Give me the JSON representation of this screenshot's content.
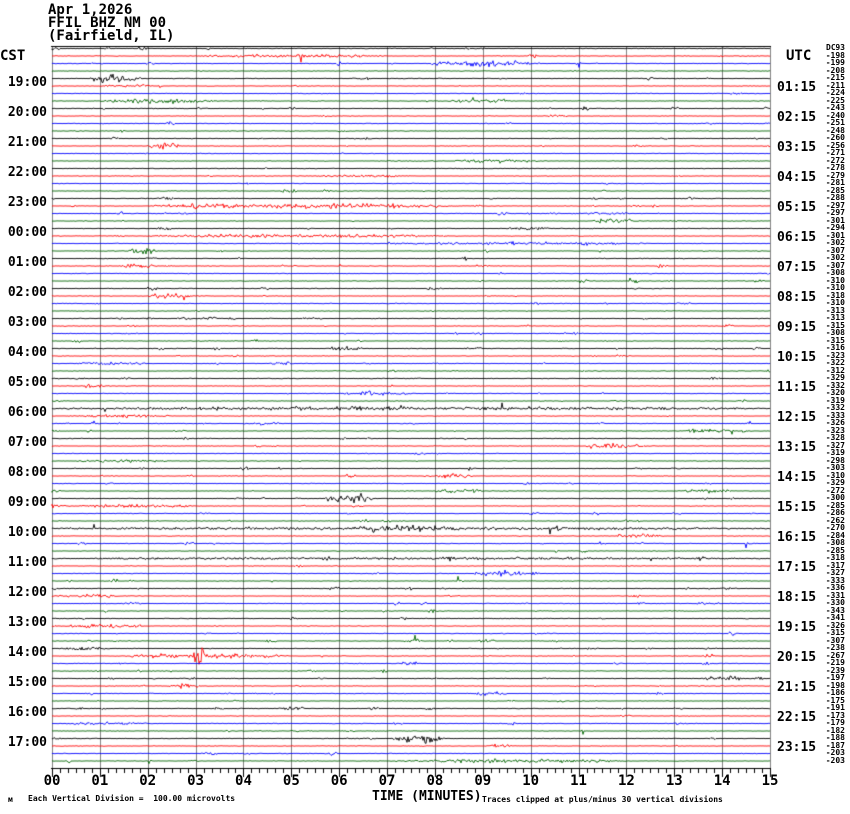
{
  "header": {
    "date": "Apr 1,2026",
    "station_id": "FFIL BHZ NM 00",
    "location": "(Fairfield, IL)"
  },
  "axis_headers": {
    "left": "CST",
    "right": "UTC",
    "dc": "DC"
  },
  "footer": {
    "corner_mark": "м",
    "scale_note": "Each Vertical Division =  100.00 microvolts",
    "time_axis_label": "TIME (MINUTES)",
    "clip_note": "Traces clipped at plus/minus 30 vertical divisions"
  },
  "chart_data": {
    "type": "line",
    "subtype": "helicorder-seismogram",
    "title": "FFIL BHZ NM 00 (Fairfield, IL) Apr 1,2026",
    "xlabel": "TIME (MINUTES)",
    "x_range_minutes": [
      0,
      15
    ],
    "x_tick_labels": [
      "00",
      "01",
      "02",
      "03",
      "04",
      "05",
      "06",
      "07",
      "08",
      "09",
      "10",
      "11",
      "12",
      "13",
      "14",
      "15"
    ],
    "minor_ticks_per_minute": 6,
    "rows": 96,
    "minutes_per_row": 15,
    "row_colors_cycle": [
      "#000000",
      "#ff0000",
      "#0000ff",
      "#006400"
    ],
    "grid_color": "#808080",
    "clip_divisions": 30,
    "microvolts_per_division": "100.00",
    "left_time_labels_cst": [
      "19:00",
      "20:00",
      "21:00",
      "22:00",
      "23:00",
      "00:00",
      "01:00",
      "02:00",
      "03:00",
      "04:00",
      "05:00",
      "06:00",
      "07:00",
      "08:00",
      "09:00",
      "10:00",
      "11:00",
      "12:00",
      "13:00",
      "14:00",
      "15:00",
      "16:00",
      "17:00"
    ],
    "right_time_labels_utc": [
      "01:15",
      "02:15",
      "03:15",
      "04:15",
      "05:15",
      "06:15",
      "07:15",
      "08:15",
      "09:15",
      "10:15",
      "11:15",
      "12:15",
      "13:15",
      "14:15",
      "15:15",
      "16:15",
      "17:15",
      "18:15",
      "19:15",
      "20:15",
      "21:15",
      "22:15",
      "23:15"
    ],
    "dc_offsets": [
      -193,
      -198,
      -199,
      -208,
      -215,
      -211,
      -224,
      -225,
      -243,
      -240,
      -251,
      -248,
      -260,
      -256,
      -271,
      -272,
      -278,
      -279,
      -281,
      -285,
      -288,
      -297,
      -297,
      -301,
      -294,
      -301,
      -302,
      -307,
      -302,
      -307,
      -308,
      -310,
      -310,
      -318,
      -310,
      -313,
      -313,
      -315,
      -308,
      -315,
      -316,
      -323,
      -322,
      -312,
      -329,
      -332,
      -320,
      -319,
      -332,
      -333,
      -326,
      -323,
      -328,
      -327,
      -319,
      -298,
      -303,
      -310,
      -329,
      -272,
      -300,
      -285,
      -286,
      -262,
      -270,
      -284,
      -308,
      -285,
      -318,
      -317,
      -327,
      -333,
      -336,
      -331,
      -330,
      -343,
      -341,
      -326,
      -315,
      -307,
      -238,
      -267,
      -219,
      -239,
      -197,
      -198,
      -186,
      -175,
      -191,
      -173,
      -179,
      -182,
      -188,
      -187,
      -203,
      -203
    ],
    "events": [
      {
        "r": 1,
        "t0": 3.0,
        "t1": 7.0,
        "a": 1.5
      },
      {
        "r": 2,
        "t0": 7.9,
        "t1": 10.2,
        "a": 3
      },
      {
        "r": 4,
        "t0": 0.8,
        "t1": 1.8,
        "a": 5
      },
      {
        "r": 5,
        "t0": 1.0,
        "t1": 2.2,
        "a": 1.2
      },
      {
        "r": 7,
        "t0": 1.0,
        "t1": 3.5,
        "a": 2
      },
      {
        "r": 7,
        "t0": 8.3,
        "t1": 9.6,
        "a": 1.5
      },
      {
        "r": 13,
        "t0": 2.0,
        "t1": 2.7,
        "a": 2.5
      },
      {
        "r": 15,
        "t0": 8.3,
        "t1": 10.2,
        "a": 1.5
      },
      {
        "r": 17,
        "t0": 5.5,
        "t1": 7.5,
        "a": 1.2
      },
      {
        "r": 21,
        "t0": 2.0,
        "t1": 8.5,
        "a": 2.2
      },
      {
        "r": 22,
        "t0": 10.8,
        "t1": 11.9,
        "a": 1.2
      },
      {
        "r": 23,
        "t0": 11.3,
        "t1": 12.3,
        "a": 2.5
      },
      {
        "r": 24,
        "t0": 9.5,
        "t1": 10.4,
        "a": 1.5
      },
      {
        "r": 25,
        "t0": 2.0,
        "t1": 8.3,
        "a": 1.6
      },
      {
        "r": 26,
        "t0": 7.0,
        "t1": 12.5,
        "a": 1.2
      },
      {
        "r": 27,
        "t0": 1.6,
        "t1": 2.2,
        "a": 3
      },
      {
        "r": 29,
        "t0": 1.4,
        "t1": 2.2,
        "a": 1.5
      },
      {
        "r": 33,
        "t0": 2.0,
        "t1": 2.9,
        "a": 2.2
      },
      {
        "r": 36,
        "t0": 3.0,
        "t1": 3.5,
        "a": 2
      },
      {
        "r": 40,
        "t0": 5.8,
        "t1": 6.5,
        "a": 2.5
      },
      {
        "r": 40,
        "t0": 8.6,
        "t1": 9.0,
        "a": 1.8
      },
      {
        "r": 42,
        "t0": 0.5,
        "t1": 2.0,
        "a": 1.4
      },
      {
        "r": 46,
        "t0": 6.0,
        "t1": 7.5,
        "a": 1.4
      },
      {
        "r": 48,
        "t0": 0,
        "t1": 15,
        "a": 1.5
      },
      {
        "r": 49,
        "t0": 0.3,
        "t1": 2.5,
        "a": 1.4
      },
      {
        "r": 51,
        "t0": 13.2,
        "t1": 14.3,
        "a": 2.2
      },
      {
        "r": 53,
        "t0": 11.2,
        "t1": 12.4,
        "a": 2.2
      },
      {
        "r": 55,
        "t0": 0.5,
        "t1": 2.5,
        "a": 1.4
      },
      {
        "r": 57,
        "t0": 8.0,
        "t1": 8.8,
        "a": 2.2
      },
      {
        "r": 59,
        "t0": 8.0,
        "t1": 9.0,
        "a": 2
      },
      {
        "r": 59,
        "t0": 13.2,
        "t1": 14.2,
        "a": 2
      },
      {
        "r": 60,
        "t0": 5.7,
        "t1": 6.7,
        "a": 5
      },
      {
        "r": 61,
        "t0": 0.5,
        "t1": 3.0,
        "a": 1.5
      },
      {
        "r": 64,
        "t0": 0,
        "t1": 15,
        "a": 1.3
      },
      {
        "r": 64,
        "t0": 6.2,
        "t1": 8.6,
        "a": 3.5
      },
      {
        "r": 65,
        "t0": 11.8,
        "t1": 12.8,
        "a": 1.8
      },
      {
        "r": 68,
        "t0": 0,
        "t1": 15,
        "a": 1.0
      },
      {
        "r": 70,
        "t0": 8.9,
        "t1": 9.9,
        "a": 2.5
      },
      {
        "r": 73,
        "t0": 0.2,
        "t1": 1.5,
        "a": 1.4
      },
      {
        "r": 77,
        "t0": 0.2,
        "t1": 2.0,
        "a": 1.8
      },
      {
        "r": 80,
        "t0": 0.2,
        "t1": 1.2,
        "a": 2
      },
      {
        "r": 81,
        "t0": 1.5,
        "t1": 5.0,
        "a": 2
      },
      {
        "r": 81,
        "t0": 2.95,
        "t1": 3.2,
        "a": 9
      },
      {
        "r": 82,
        "t0": 7.2,
        "t1": 7.7,
        "a": 1.8
      },
      {
        "r": 84,
        "t0": 13.6,
        "t1": 14.5,
        "a": 2.5
      },
      {
        "r": 85,
        "t0": 2.6,
        "t1": 3.1,
        "a": 2.2
      },
      {
        "r": 86,
        "t0": 8.8,
        "t1": 9.5,
        "a": 2.2
      },
      {
        "r": 88,
        "t0": 4.7,
        "t1": 5.3,
        "a": 2.2
      },
      {
        "r": 90,
        "t0": 0.3,
        "t1": 2.0,
        "a": 1.3
      },
      {
        "r": 92,
        "t0": 7.1,
        "t1": 8.2,
        "a": 4
      },
      {
        "r": 93,
        "t0": 9.0,
        "t1": 9.6,
        "a": 1.8
      },
      {
        "r": 95,
        "t0": 7.3,
        "t1": 12.0,
        "a": 1.6
      }
    ]
  }
}
